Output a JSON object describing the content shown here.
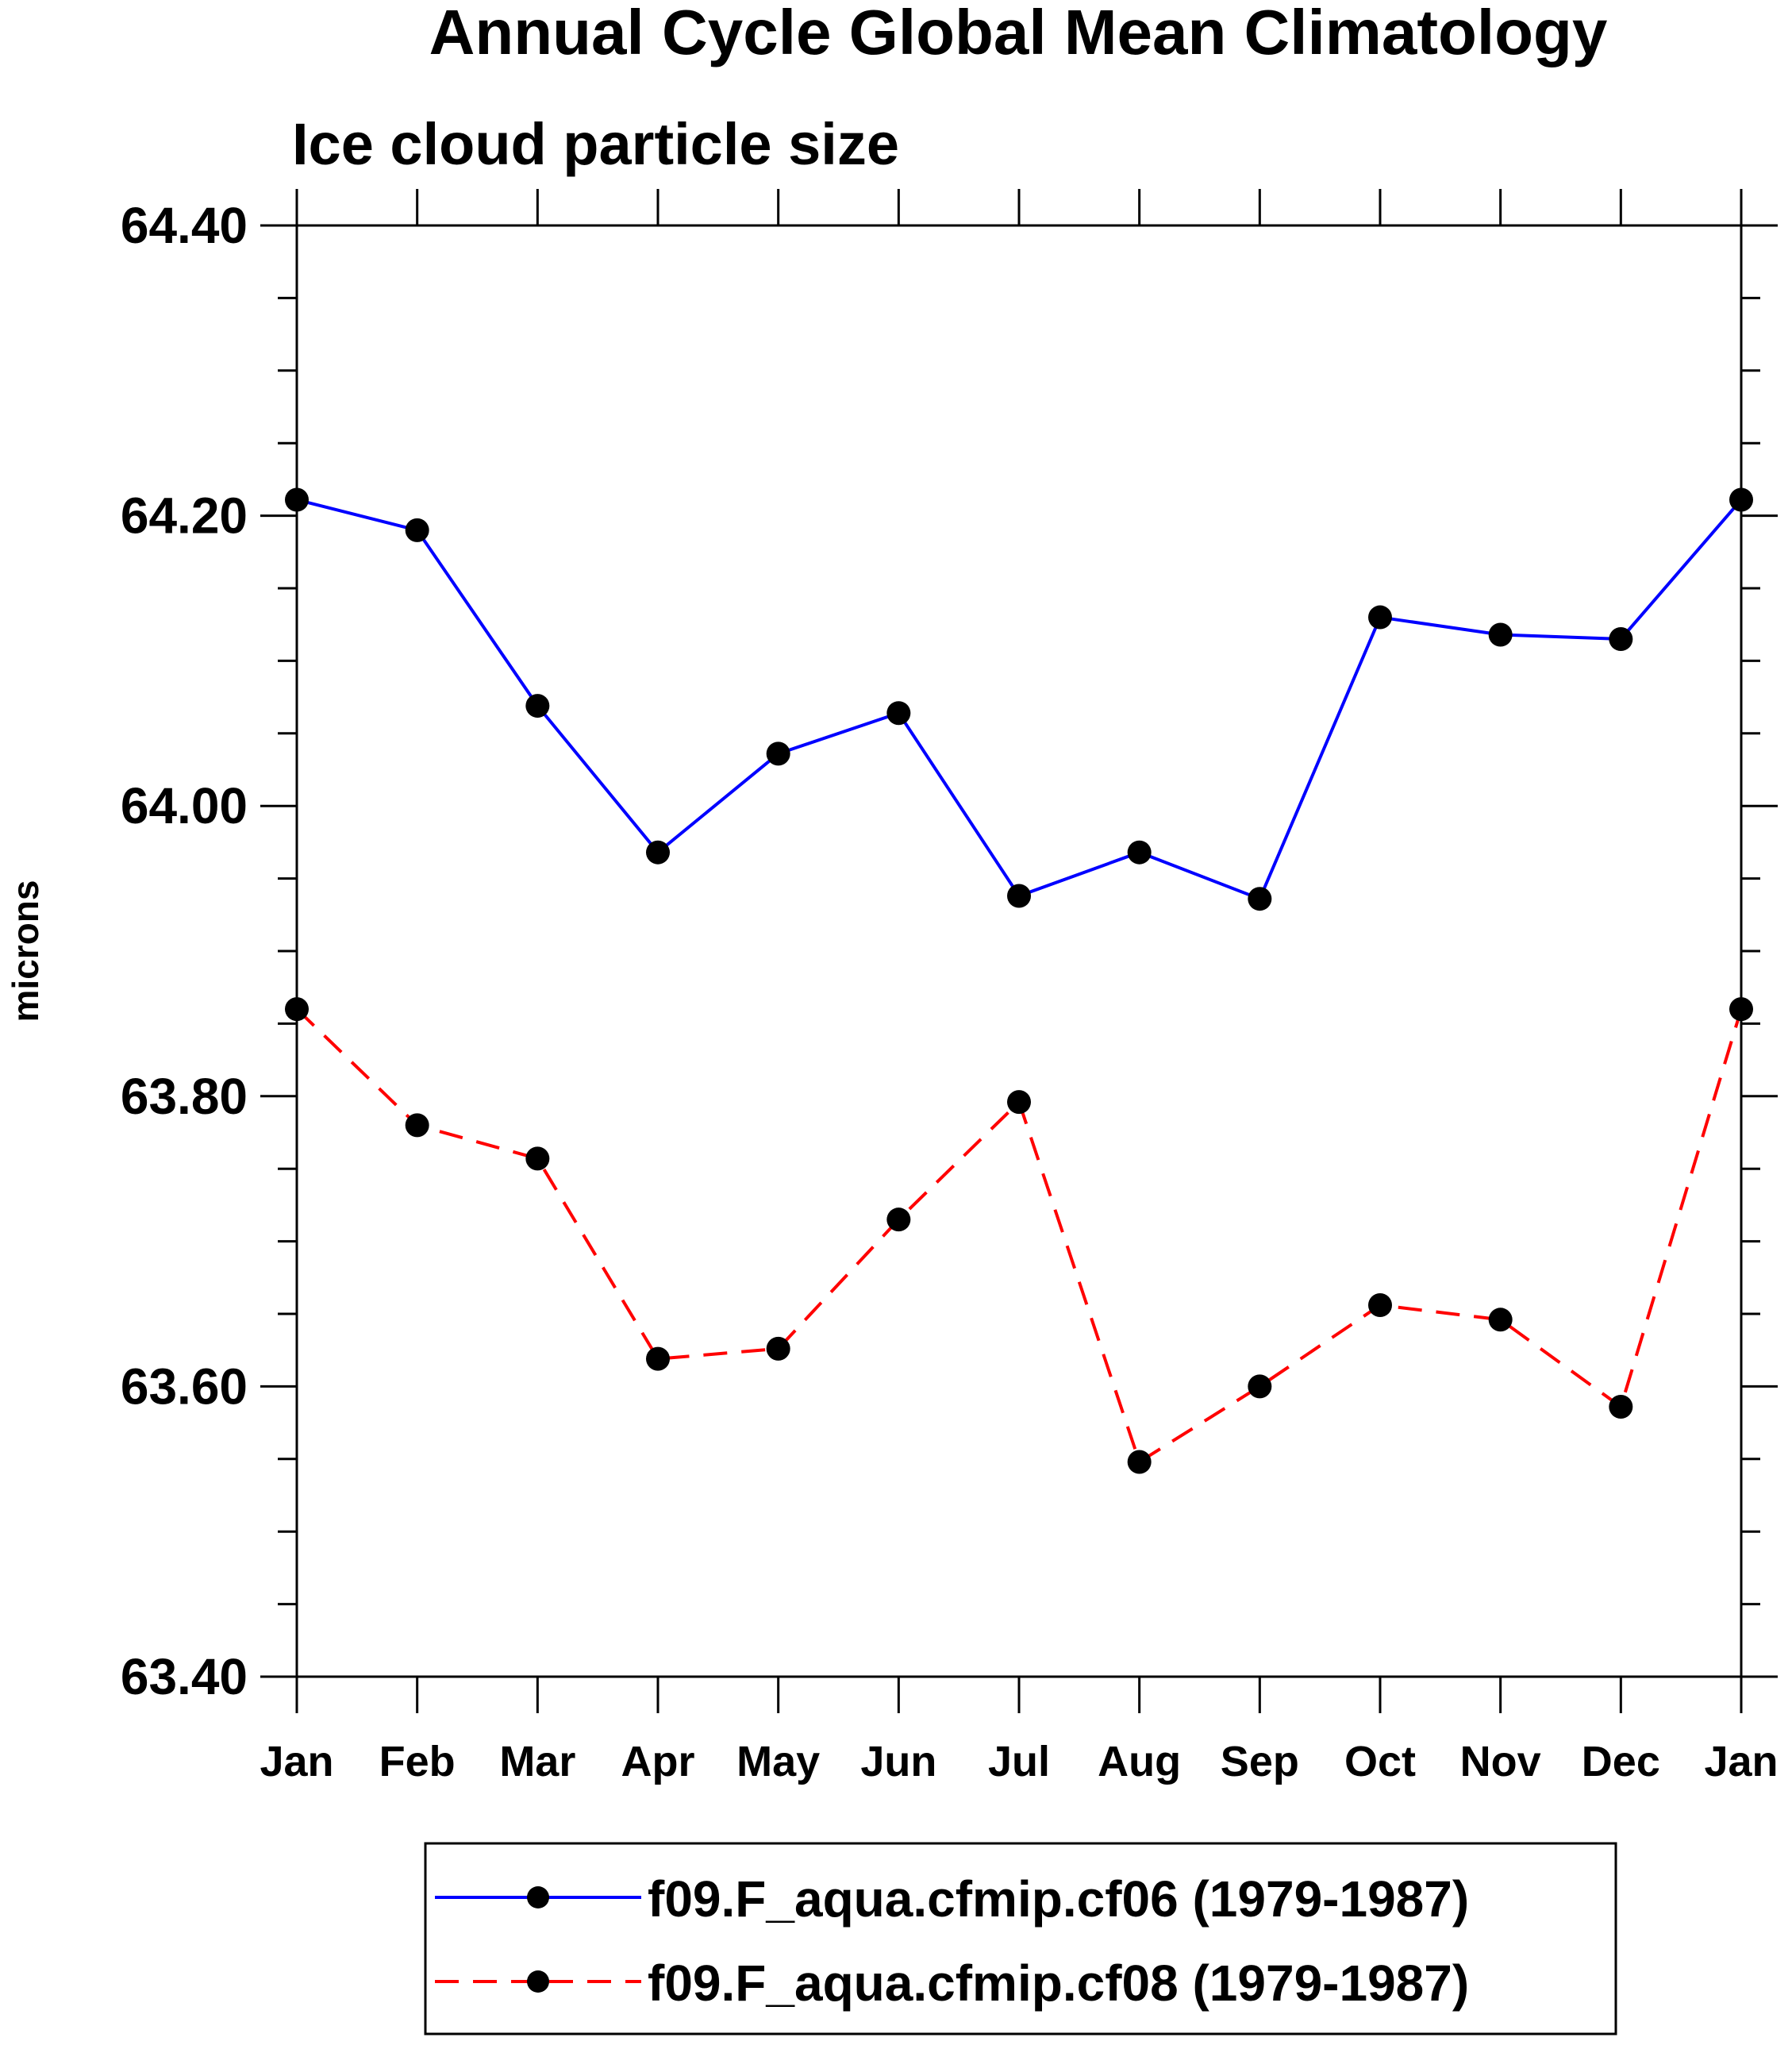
{
  "chart_data": {
    "type": "line",
    "title": "Annual Cycle Global Mean Climatology",
    "subtitle": "Ice cloud particle size",
    "xlabel": "",
    "ylabel": "microns",
    "categories": [
      "Jan",
      "Feb",
      "Mar",
      "Apr",
      "May",
      "Jun",
      "Jul",
      "Aug",
      "Sep",
      "Oct",
      "Nov",
      "Dec",
      "Jan"
    ],
    "ylim": [
      63.4,
      64.4
    ],
    "yticks": [
      "63.40",
      "63.60",
      "63.80",
      "64.00",
      "64.20",
      "64.40"
    ],
    "ytick_values": [
      63.4,
      63.6,
      63.8,
      64.0,
      64.2,
      64.4
    ],
    "grid": false,
    "legend_position": "bottom",
    "series": [
      {
        "name": "f09.F_aqua.cfmip.cf06 (1979-1987)",
        "color": "#0000ff",
        "line_style": "solid",
        "marker": "filled-circle",
        "values": [
          64.211,
          64.19,
          64.069,
          63.968,
          64.036,
          64.064,
          63.938,
          63.968,
          63.936,
          64.13,
          64.118,
          64.115,
          64.211
        ]
      },
      {
        "name": "f09.F_aqua.cfmip.cf08 (1979-1987)",
        "color": "#ff0000",
        "line_style": "dashed",
        "marker": "filled-circle",
        "values": [
          63.86,
          63.78,
          63.757,
          63.619,
          63.626,
          63.715,
          63.796,
          63.548,
          63.6,
          63.656,
          63.646,
          63.586,
          63.86
        ]
      }
    ]
  }
}
